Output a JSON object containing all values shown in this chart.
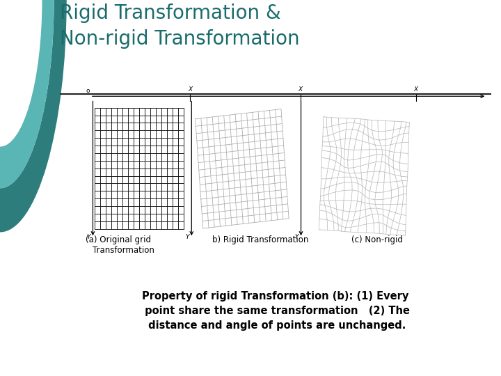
{
  "title_line1": "Rigid Transformation &",
  "title_line2": "Non-rigid Transformation",
  "title_color": "#1a6b6b",
  "title_fontsize": 20,
  "bg_color": "#ffffff",
  "caption_a": "(a) Original grid\n    Transformation",
  "caption_b": "b) Rigid Transformation",
  "caption_c": "(c) Non-rigid",
  "body_text_line1": "Property of rigid Transformation (b): (1) Every",
  "body_text_line2": " point share the same transformation   (2) The",
  "body_text_line3": " distance and angle of points are unchanged.",
  "grid_color_a": "#111111",
  "grid_color_b": "#aaaaaa",
  "grid_color_c": "#bbbbbb",
  "separator_color": "#222222",
  "teal_dark": "#2e7d7d",
  "teal_light": "#5ab5b5",
  "label_o": "o",
  "label_x": "X",
  "label_y": "Y"
}
